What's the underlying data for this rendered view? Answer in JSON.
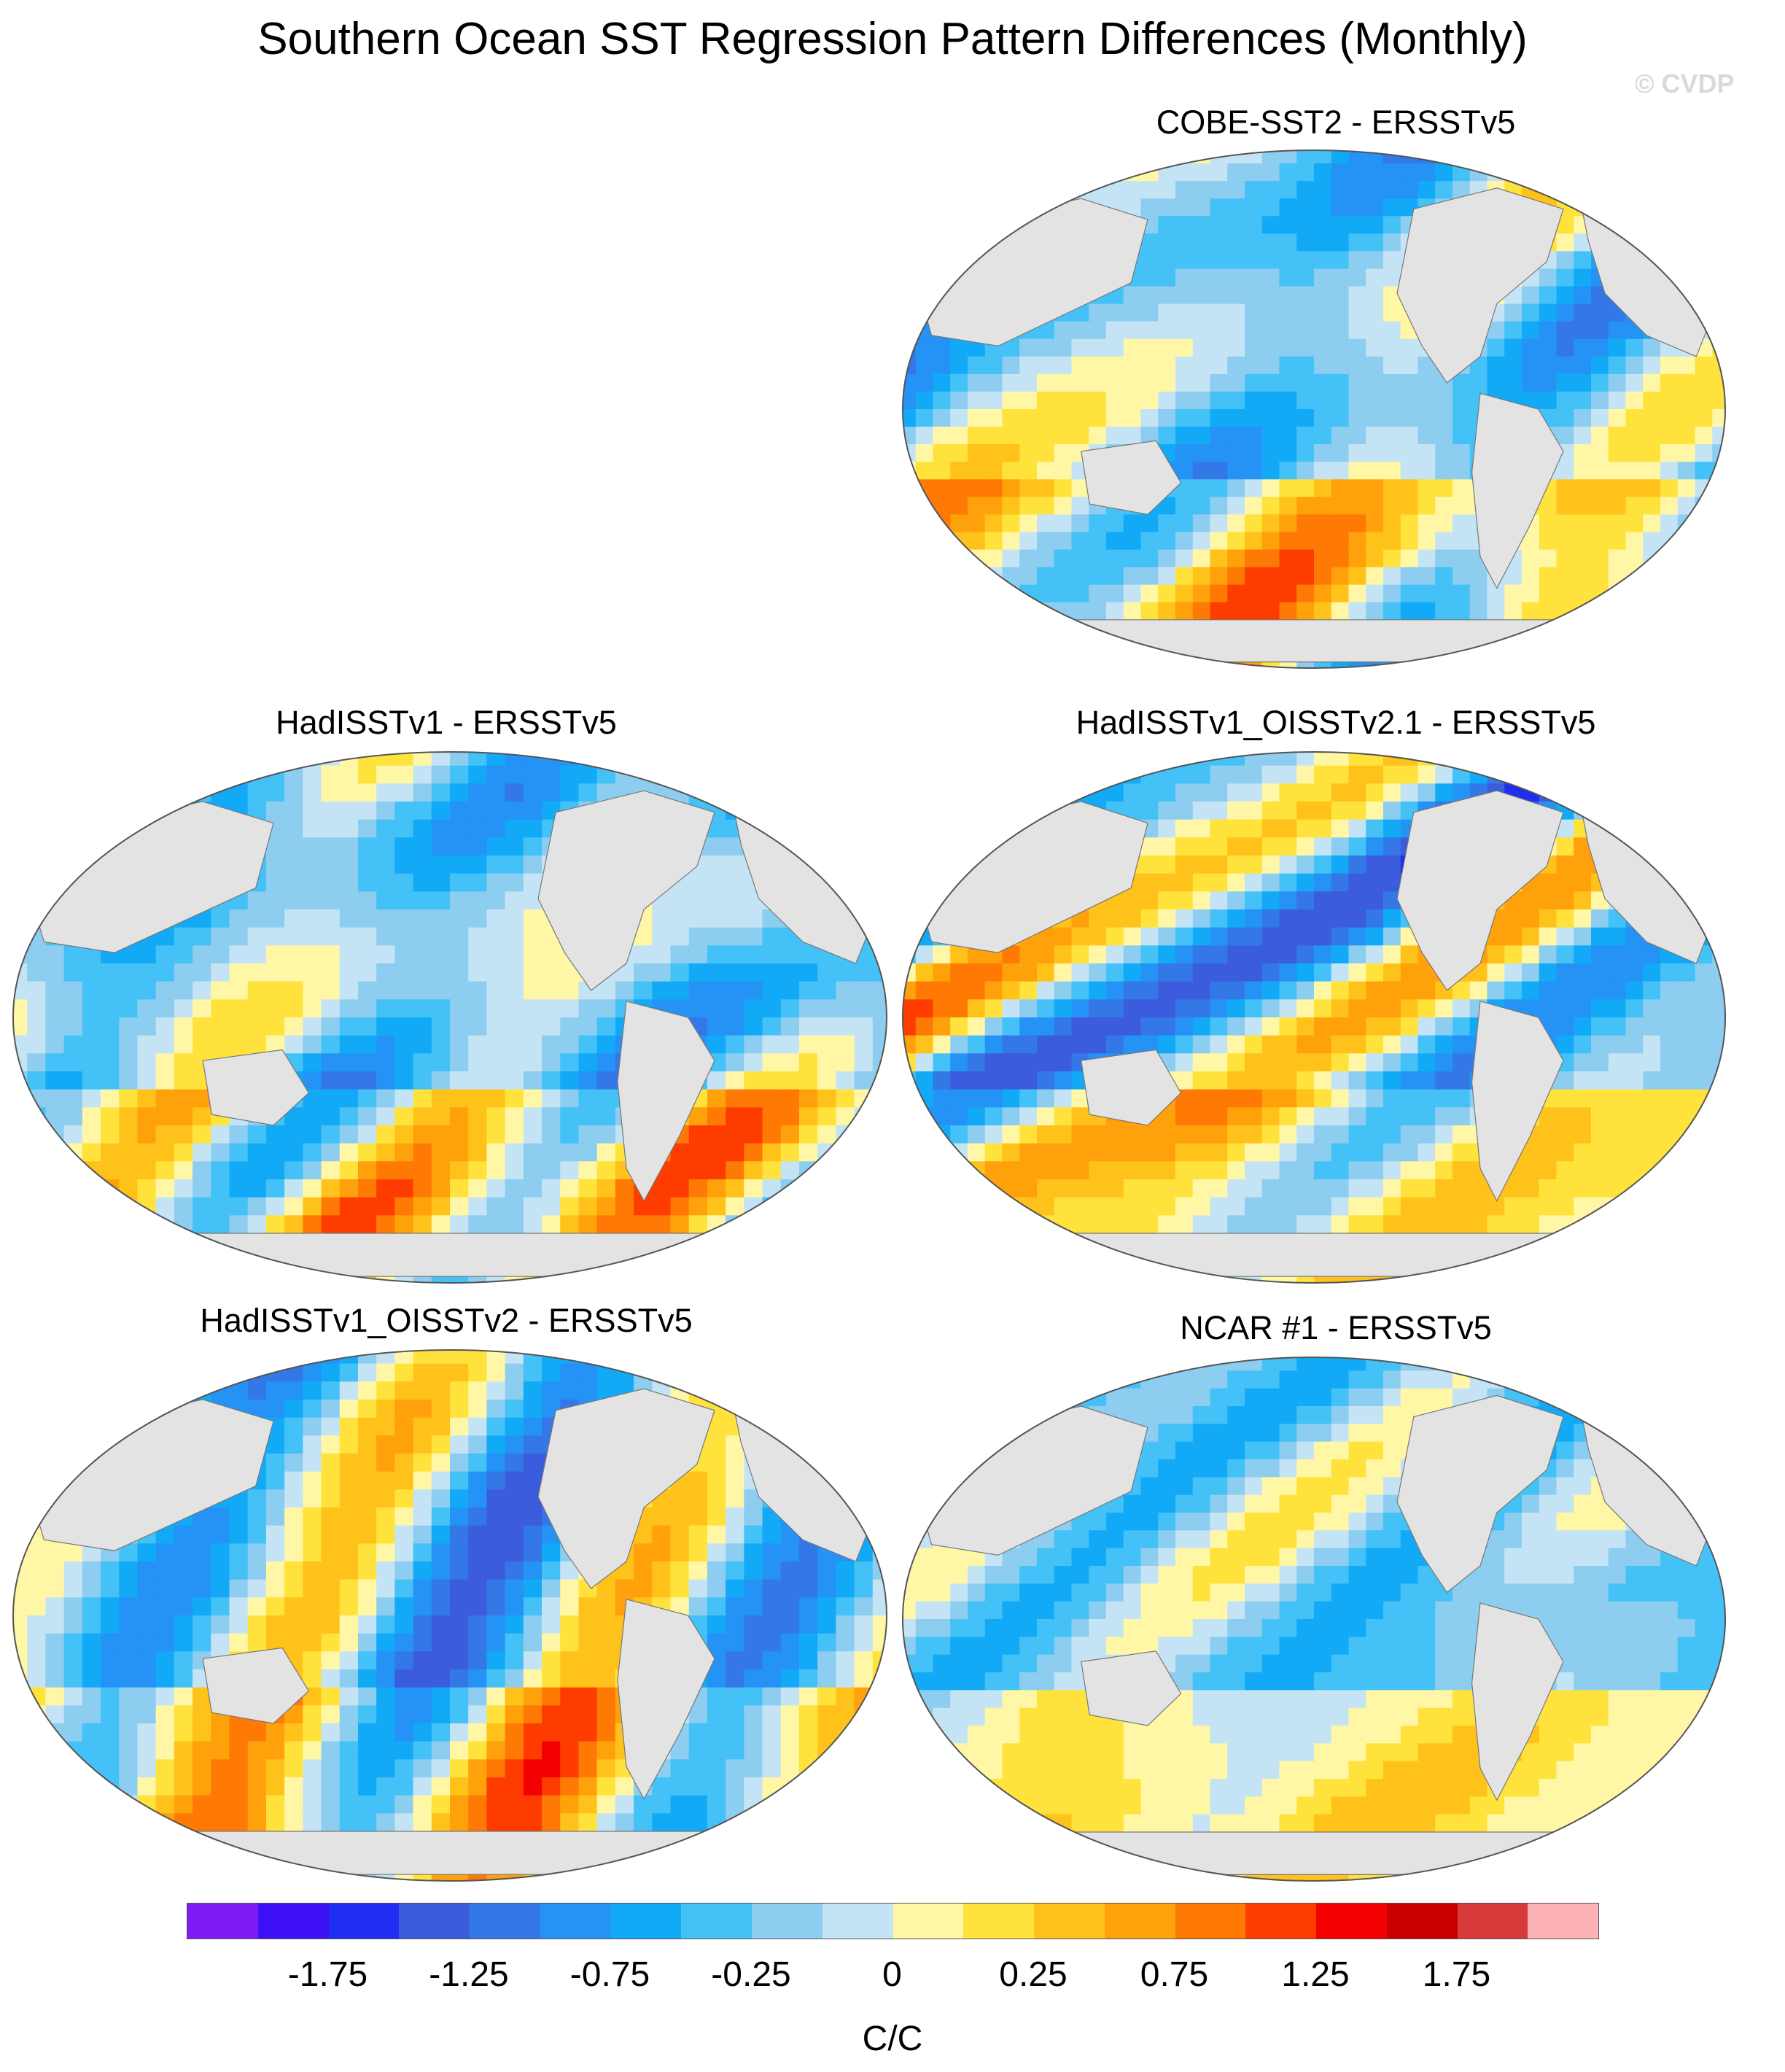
{
  "figure": {
    "title": "Southern Ocean SST Regression Pattern Differences (Monthly)",
    "credit": "© CVDP"
  },
  "chart_data": {
    "type": "heatmap",
    "projection": "Robinson",
    "panels": [
      {
        "id": "p1",
        "title": "COBE-SST2 - ERSSTv5",
        "seed": 11
      },
      {
        "id": "p2",
        "title": "HadISSTv1 - ERSSTv5",
        "seed": 23
      },
      {
        "id": "p3",
        "title": "HadISSTv1_OISSTv2.1 - ERSSTv5",
        "seed": 37
      },
      {
        "id": "p4",
        "title": "HadISSTv1_OISSTv2 - ERSSTv5",
        "seed": 41
      },
      {
        "id": "p5",
        "title": "NCAR #1 - ERSSTv5",
        "seed": 59
      }
    ],
    "colorbar": {
      "colors": [
        "#7f1cf5",
        "#3d10f5",
        "#1f2ef0",
        "#3b5cdc",
        "#3378e6",
        "#2592f5",
        "#12aaf7",
        "#44c1f7",
        "#8dcdef",
        "#c4e4f6",
        "#fff7a6",
        "#ffe23c",
        "#ffc21a",
        "#ffa10a",
        "#ff7a05",
        "#ff3c00",
        "#f30000",
        "#c90000",
        "#d63a3a",
        "#ffb2b6"
      ],
      "labels": [
        "-1.75",
        "-1.25",
        "-0.75",
        "-0.25",
        "0",
        "0.25",
        "0.75",
        "1.25",
        "1.75"
      ],
      "min": -2.25,
      "max": 2.25,
      "units": "C/C"
    }
  }
}
